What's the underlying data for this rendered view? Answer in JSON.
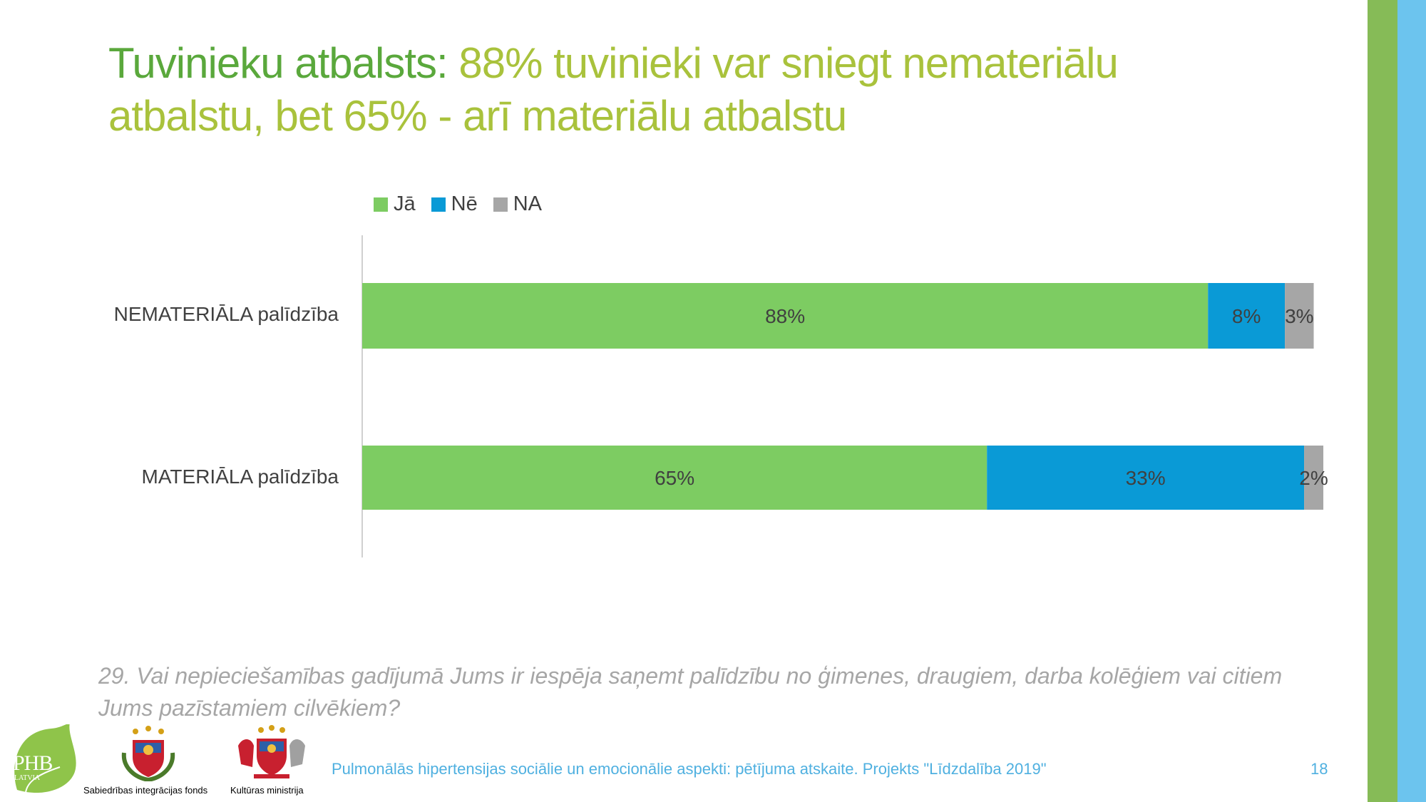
{
  "slide": {
    "title_lead": "Tuvinieku atbalsts:",
    "title_rest": " 88% tuvinieki var sniegt nemateriālu atbalstu, bet 65% - arī materiālu atbalstu",
    "question": "29. Vai nepieciešamības gadījumā Jums ir iespēja saņemt palīdzību no ģimenes, draugiem, darba kolēģiem vai citiem Jums pazīstamiem cilvēkiem?",
    "footer": "Pulmonālās hipertensijas sociālie un emocionālie aspekti: pētījuma atskaite. Projekts \"Līdzdalība 2019\"",
    "page_number": "18",
    "logos": {
      "phb_text": "PHB",
      "phb_sub": "LATVIA",
      "sif_caption": "Sabiedrības integrācijas fonds",
      "km_caption": "Kultūras ministrija"
    },
    "colors": {
      "title_lead": "#5aa83c",
      "title_rest": "#a9c23c",
      "stripe_green": "#86bb57",
      "stripe_blue": "#6cc4ee"
    }
  },
  "chart_data": {
    "type": "bar",
    "orientation": "horizontal",
    "stacked": true,
    "normalized_percent": true,
    "categories": [
      "NEMATERIĀLA palīdzība",
      "MATERIĀLA palīdzība"
    ],
    "series": [
      {
        "name": "Jā",
        "color": "#7dcc62",
        "values": [
          88,
          65
        ],
        "labels": [
          "88%",
          "65%"
        ]
      },
      {
        "name": "Nē",
        "color": "#0a9ad6",
        "values": [
          8,
          33
        ],
        "labels": [
          "8%",
          "33%"
        ]
      },
      {
        "name": "NA",
        "color": "#a6a6a6",
        "values": [
          3,
          2
        ],
        "labels": [
          "3%",
          "2%"
        ]
      }
    ],
    "xlim": [
      0,
      100
    ],
    "legend_position": "top",
    "grid": false
  }
}
